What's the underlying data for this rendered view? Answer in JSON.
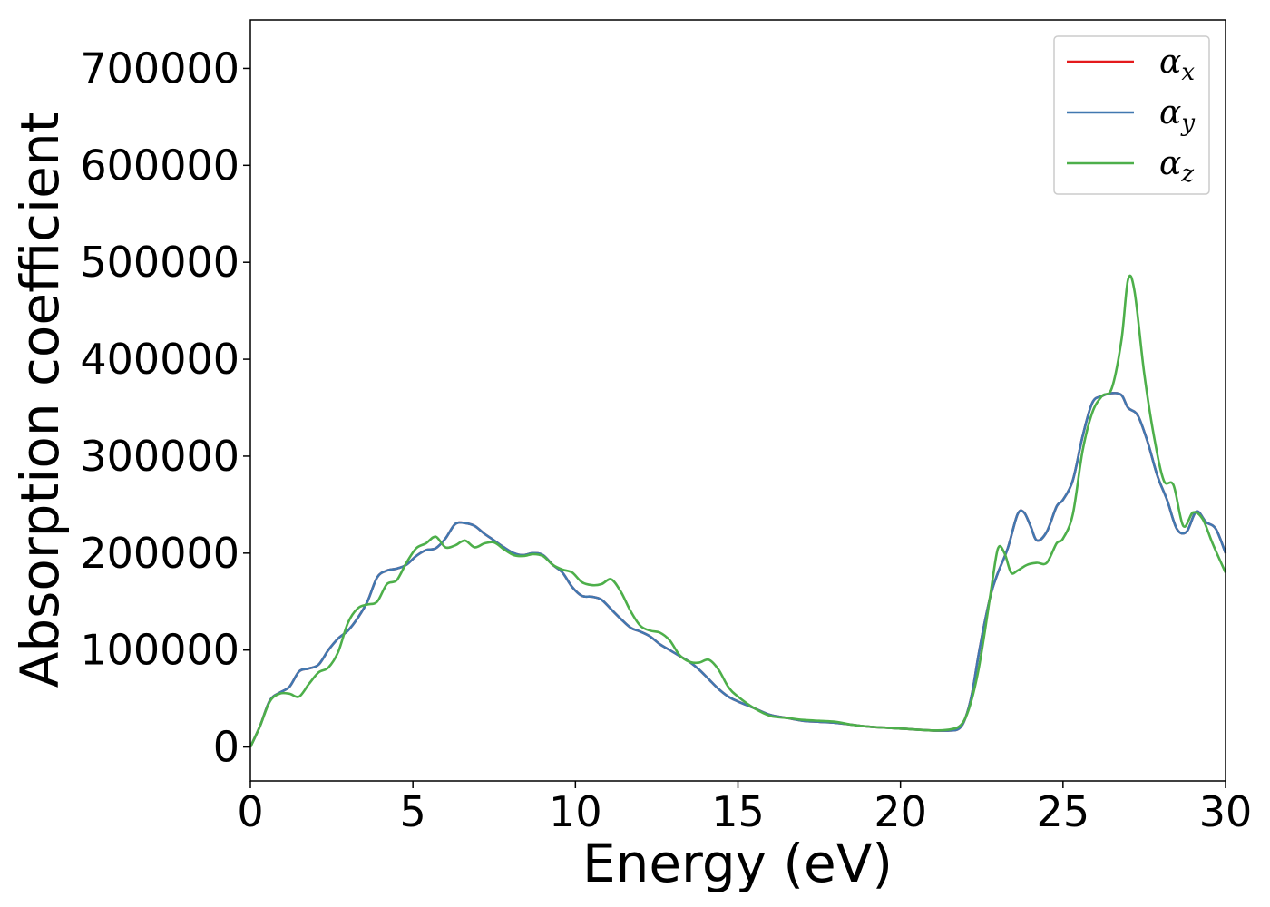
{
  "chart_data": {
    "type": "line",
    "xlabel": "Energy (eV)",
    "ylabel": "Absorption coefficient",
    "xlim": [
      0,
      30
    ],
    "ylim": [
      -35000,
      750000
    ],
    "xticks": [
      "0",
      "5",
      "10",
      "15",
      "20",
      "25",
      "30"
    ],
    "yticks": [
      "0",
      "100000",
      "200000",
      "300000",
      "400000",
      "500000",
      "600000",
      "700000"
    ],
    "grid": false,
    "legend_position": "top-right",
    "series": [
      {
        "name_base": "α",
        "name_sub": "x",
        "color": "#e41a1c",
        "x": [
          0,
          0.3,
          0.6,
          0.9,
          1.2,
          1.5,
          1.8,
          2.1,
          2.4,
          2.7,
          3.0,
          3.3,
          3.6,
          3.9,
          4.2,
          4.5,
          4.8,
          5.1,
          5.4,
          5.7,
          6.0,
          6.3,
          6.6,
          6.9,
          7.2,
          7.5,
          7.8,
          8.1,
          8.4,
          8.7,
          9.0,
          9.3,
          9.6,
          9.9,
          10.2,
          10.5,
          10.8,
          11.1,
          11.4,
          11.7,
          12.0,
          12.3,
          12.6,
          12.9,
          13.2,
          13.5,
          13.8,
          14.1,
          14.4,
          14.7,
          15.0,
          15.5,
          16.0,
          16.5,
          17.0,
          17.5,
          18.0,
          18.5,
          19.0,
          19.5,
          20.0,
          20.5,
          21.0,
          21.5,
          21.8,
          22.0,
          22.2,
          22.4,
          22.6,
          22.8,
          23.0,
          23.3,
          23.6,
          23.8,
          24.0,
          24.2,
          24.5,
          24.8,
          25.0,
          25.3,
          25.6,
          25.9,
          26.2,
          26.5,
          26.8,
          27.0,
          27.3,
          27.6,
          27.9,
          28.2,
          28.5,
          28.8,
          29.1,
          29.4,
          29.7,
          30.0
        ],
        "y": [
          0,
          22000,
          48000,
          56000,
          62000,
          78000,
          81000,
          85000,
          100000,
          112000,
          120000,
          133000,
          150000,
          175000,
          182000,
          184000,
          188000,
          197000,
          203000,
          205000,
          215000,
          230000,
          231000,
          228000,
          220000,
          213000,
          206000,
          200000,
          198000,
          200000,
          198000,
          188000,
          180000,
          165000,
          156000,
          155000,
          152000,
          142000,
          132000,
          123000,
          119000,
          114000,
          106000,
          100000,
          94000,
          88000,
          80000,
          70000,
          60000,
          52000,
          47000,
          40000,
          33000,
          30000,
          27000,
          26000,
          25000,
          23000,
          21000,
          20000,
          19000,
          18000,
          17000,
          17000,
          19000,
          30000,
          55000,
          95000,
          130000,
          160000,
          180000,
          205000,
          240000,
          242000,
          228000,
          213000,
          222000,
          248000,
          255000,
          275000,
          320000,
          355000,
          362000,
          365000,
          363000,
          350000,
          342000,
          315000,
          280000,
          255000,
          225000,
          222000,
          243000,
          232000,
          225000,
          200000
        ]
      },
      {
        "name_base": "α",
        "name_sub": "y",
        "color": "#4178b0",
        "x": [
          0,
          0.3,
          0.6,
          0.9,
          1.2,
          1.5,
          1.8,
          2.1,
          2.4,
          2.7,
          3.0,
          3.3,
          3.6,
          3.9,
          4.2,
          4.5,
          4.8,
          5.1,
          5.4,
          5.7,
          6.0,
          6.3,
          6.6,
          6.9,
          7.2,
          7.5,
          7.8,
          8.1,
          8.4,
          8.7,
          9.0,
          9.3,
          9.6,
          9.9,
          10.2,
          10.5,
          10.8,
          11.1,
          11.4,
          11.7,
          12.0,
          12.3,
          12.6,
          12.9,
          13.2,
          13.5,
          13.8,
          14.1,
          14.4,
          14.7,
          15.0,
          15.5,
          16.0,
          16.5,
          17.0,
          17.5,
          18.0,
          18.5,
          19.0,
          19.5,
          20.0,
          20.5,
          21.0,
          21.5,
          21.8,
          22.0,
          22.2,
          22.4,
          22.6,
          22.8,
          23.0,
          23.3,
          23.6,
          23.8,
          24.0,
          24.2,
          24.5,
          24.8,
          25.0,
          25.3,
          25.6,
          25.9,
          26.2,
          26.5,
          26.8,
          27.0,
          27.3,
          27.6,
          27.9,
          28.2,
          28.5,
          28.8,
          29.1,
          29.4,
          29.7,
          30.0
        ],
        "y": [
          0,
          22000,
          48000,
          56000,
          62000,
          78000,
          81000,
          85000,
          100000,
          112000,
          120000,
          133000,
          150000,
          175000,
          182000,
          184000,
          188000,
          197000,
          203000,
          205000,
          215000,
          230000,
          231000,
          228000,
          220000,
          213000,
          206000,
          200000,
          198000,
          200000,
          198000,
          188000,
          180000,
          165000,
          156000,
          155000,
          152000,
          142000,
          132000,
          123000,
          119000,
          114000,
          106000,
          100000,
          94000,
          88000,
          80000,
          70000,
          60000,
          52000,
          47000,
          40000,
          33000,
          30000,
          27000,
          26000,
          25000,
          23000,
          21000,
          20000,
          19000,
          18000,
          17000,
          17000,
          19000,
          30000,
          55000,
          95000,
          130000,
          160000,
          180000,
          205000,
          240000,
          242000,
          228000,
          213000,
          222000,
          248000,
          255000,
          275000,
          320000,
          355000,
          362000,
          365000,
          363000,
          350000,
          342000,
          315000,
          280000,
          255000,
          225000,
          222000,
          243000,
          232000,
          225000,
          200000
        ]
      },
      {
        "name_base": "α",
        "name_sub": "z",
        "color": "#4daf4a",
        "x": [
          0,
          0.3,
          0.6,
          0.9,
          1.2,
          1.5,
          1.8,
          2.1,
          2.4,
          2.7,
          3.0,
          3.3,
          3.6,
          3.9,
          4.2,
          4.5,
          4.8,
          5.1,
          5.4,
          5.7,
          6.0,
          6.3,
          6.6,
          6.9,
          7.2,
          7.5,
          7.8,
          8.1,
          8.4,
          8.7,
          9.0,
          9.3,
          9.6,
          9.9,
          10.2,
          10.5,
          10.8,
          11.1,
          11.4,
          11.7,
          12.0,
          12.3,
          12.6,
          12.9,
          13.2,
          13.5,
          13.8,
          14.1,
          14.4,
          14.7,
          15.0,
          15.5,
          16.0,
          16.5,
          17.0,
          17.5,
          18.0,
          18.5,
          19.0,
          19.5,
          20.0,
          20.5,
          21.0,
          21.5,
          21.8,
          22.0,
          22.2,
          22.4,
          22.6,
          22.8,
          23.0,
          23.2,
          23.4,
          23.6,
          23.9,
          24.2,
          24.5,
          24.8,
          25.0,
          25.3,
          25.6,
          25.9,
          26.2,
          26.5,
          26.8,
          27.0,
          27.2,
          27.5,
          27.8,
          28.1,
          28.4,
          28.7,
          29.0,
          29.3,
          29.6,
          30.0
        ],
        "y": [
          0,
          22000,
          47000,
          55000,
          55000,
          52000,
          65000,
          77000,
          82000,
          98000,
          128000,
          143000,
          147000,
          150000,
          168000,
          172000,
          190000,
          205000,
          210000,
          217000,
          206000,
          208000,
          213000,
          206000,
          210000,
          211000,
          204000,
          198000,
          197000,
          199000,
          197000,
          188000,
          183000,
          180000,
          170000,
          167000,
          168000,
          173000,
          160000,
          140000,
          125000,
          120000,
          118000,
          110000,
          95000,
          88000,
          87000,
          90000,
          80000,
          62000,
          52000,
          40000,
          32000,
          30000,
          28000,
          27000,
          26000,
          23000,
          21000,
          20000,
          19000,
          18000,
          17000,
          18000,
          21000,
          30000,
          50000,
          80000,
          120000,
          165000,
          205000,
          200000,
          180000,
          182000,
          188000,
          190000,
          190000,
          210000,
          215000,
          240000,
          305000,
          345000,
          362000,
          370000,
          420000,
          482000,
          470000,
          385000,
          320000,
          275000,
          270000,
          228000,
          242000,
          235000,
          210000,
          180000
        ]
      }
    ]
  }
}
